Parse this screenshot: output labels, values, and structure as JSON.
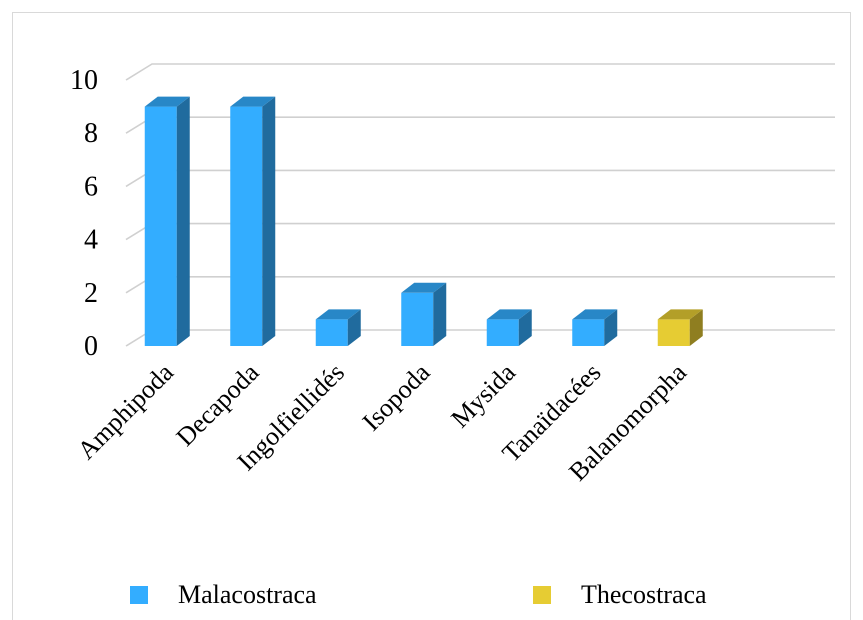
{
  "chart_data": {
    "type": "bar",
    "title": "",
    "xlabel": "",
    "ylabel": "",
    "ylim": [
      0,
      10
    ],
    "yticks": [
      0,
      2,
      4,
      6,
      8,
      10
    ],
    "grid": true,
    "legend_position": "bottom",
    "categories": [
      "Amphipoda",
      "Decapoda",
      "Ingolfiellidés",
      "Isopoda",
      "Mysida",
      "Tanaïdacées",
      "Balanomorpha"
    ],
    "series": [
      {
        "name": "Malacostraca",
        "color": "#33adff",
        "values": [
          9,
          9,
          1,
          2,
          1,
          1,
          null
        ]
      },
      {
        "name": "Thecostraca",
        "color": "#e6cc33",
        "values": [
          null,
          null,
          null,
          null,
          null,
          null,
          1
        ]
      }
    ]
  },
  "legend": [
    {
      "label": "Malacostraca",
      "color": "#33adff"
    },
    {
      "label": "Thecostraca",
      "color": "#e6cc33"
    }
  ]
}
